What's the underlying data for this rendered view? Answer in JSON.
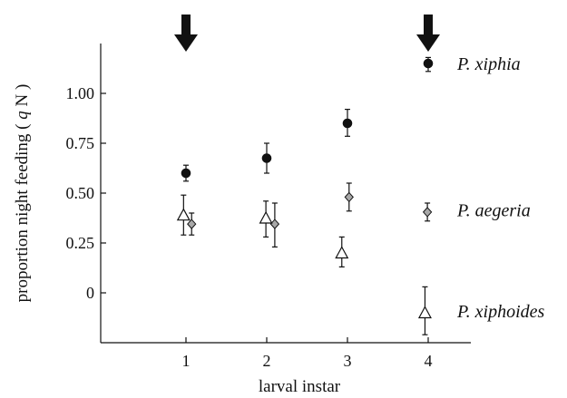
{
  "chart_data": {
    "type": "scatter",
    "xlabel": "larval instar",
    "ylabel": "proportion night feeding",
    "ylabel_italic": "q",
    "ylabel_tail": "N",
    "ylabel_close": ")",
    "ylim": [
      -0.25,
      1.25
    ],
    "yticks": [
      {
        "value": 1.0,
        "label": "1.00"
      },
      {
        "value": 0.75,
        "label": "0.75"
      },
      {
        "value": 0.5,
        "label": "0.50"
      },
      {
        "value": 0.25,
        "label": "0.25"
      },
      {
        "value": 0.0,
        "label": "0"
      }
    ],
    "xticks": [
      {
        "value": 1,
        "label": "1"
      },
      {
        "value": 2,
        "label": "2"
      },
      {
        "value": 3,
        "label": "3"
      },
      {
        "value": 4,
        "label": "4"
      }
    ],
    "arrows_at_x": [
      1,
      4
    ],
    "series": [
      {
        "name": "P. xiphia",
        "marker": "circle",
        "label_y": 1.15,
        "points": [
          {
            "x": 1,
            "y": 0.6,
            "lo": 0.56,
            "hi": 0.64
          },
          {
            "x": 2,
            "y": 0.675,
            "lo": 0.6,
            "hi": 0.75
          },
          {
            "x": 3,
            "y": 0.85,
            "lo": 0.785,
            "hi": 0.92
          },
          {
            "x": 4,
            "y": 1.15,
            "lo": 1.11,
            "hi": 1.18
          }
        ]
      },
      {
        "name": "P. aegeria",
        "marker": "diamond",
        "label_y": 0.415,
        "points": [
          {
            "x": 1.07,
            "y": 0.345,
            "lo": 0.29,
            "hi": 0.4
          },
          {
            "x": 2.1,
            "y": 0.345,
            "lo": 0.23,
            "hi": 0.45
          },
          {
            "x": 3.02,
            "y": 0.48,
            "lo": 0.41,
            "hi": 0.55
          },
          {
            "x": 3.99,
            "y": 0.405,
            "lo": 0.36,
            "hi": 0.45
          }
        ]
      },
      {
        "name": "P. xiphoides",
        "marker": "triangle",
        "label_y": -0.09,
        "points": [
          {
            "x": 0.97,
            "y": 0.39,
            "lo": 0.29,
            "hi": 0.49
          },
          {
            "x": 1.99,
            "y": 0.375,
            "lo": 0.28,
            "hi": 0.46
          },
          {
            "x": 2.93,
            "y": 0.2,
            "lo": 0.13,
            "hi": 0.28
          },
          {
            "x": 3.96,
            "y": -0.1,
            "lo": -0.21,
            "hi": 0.03
          }
        ]
      }
    ]
  }
}
